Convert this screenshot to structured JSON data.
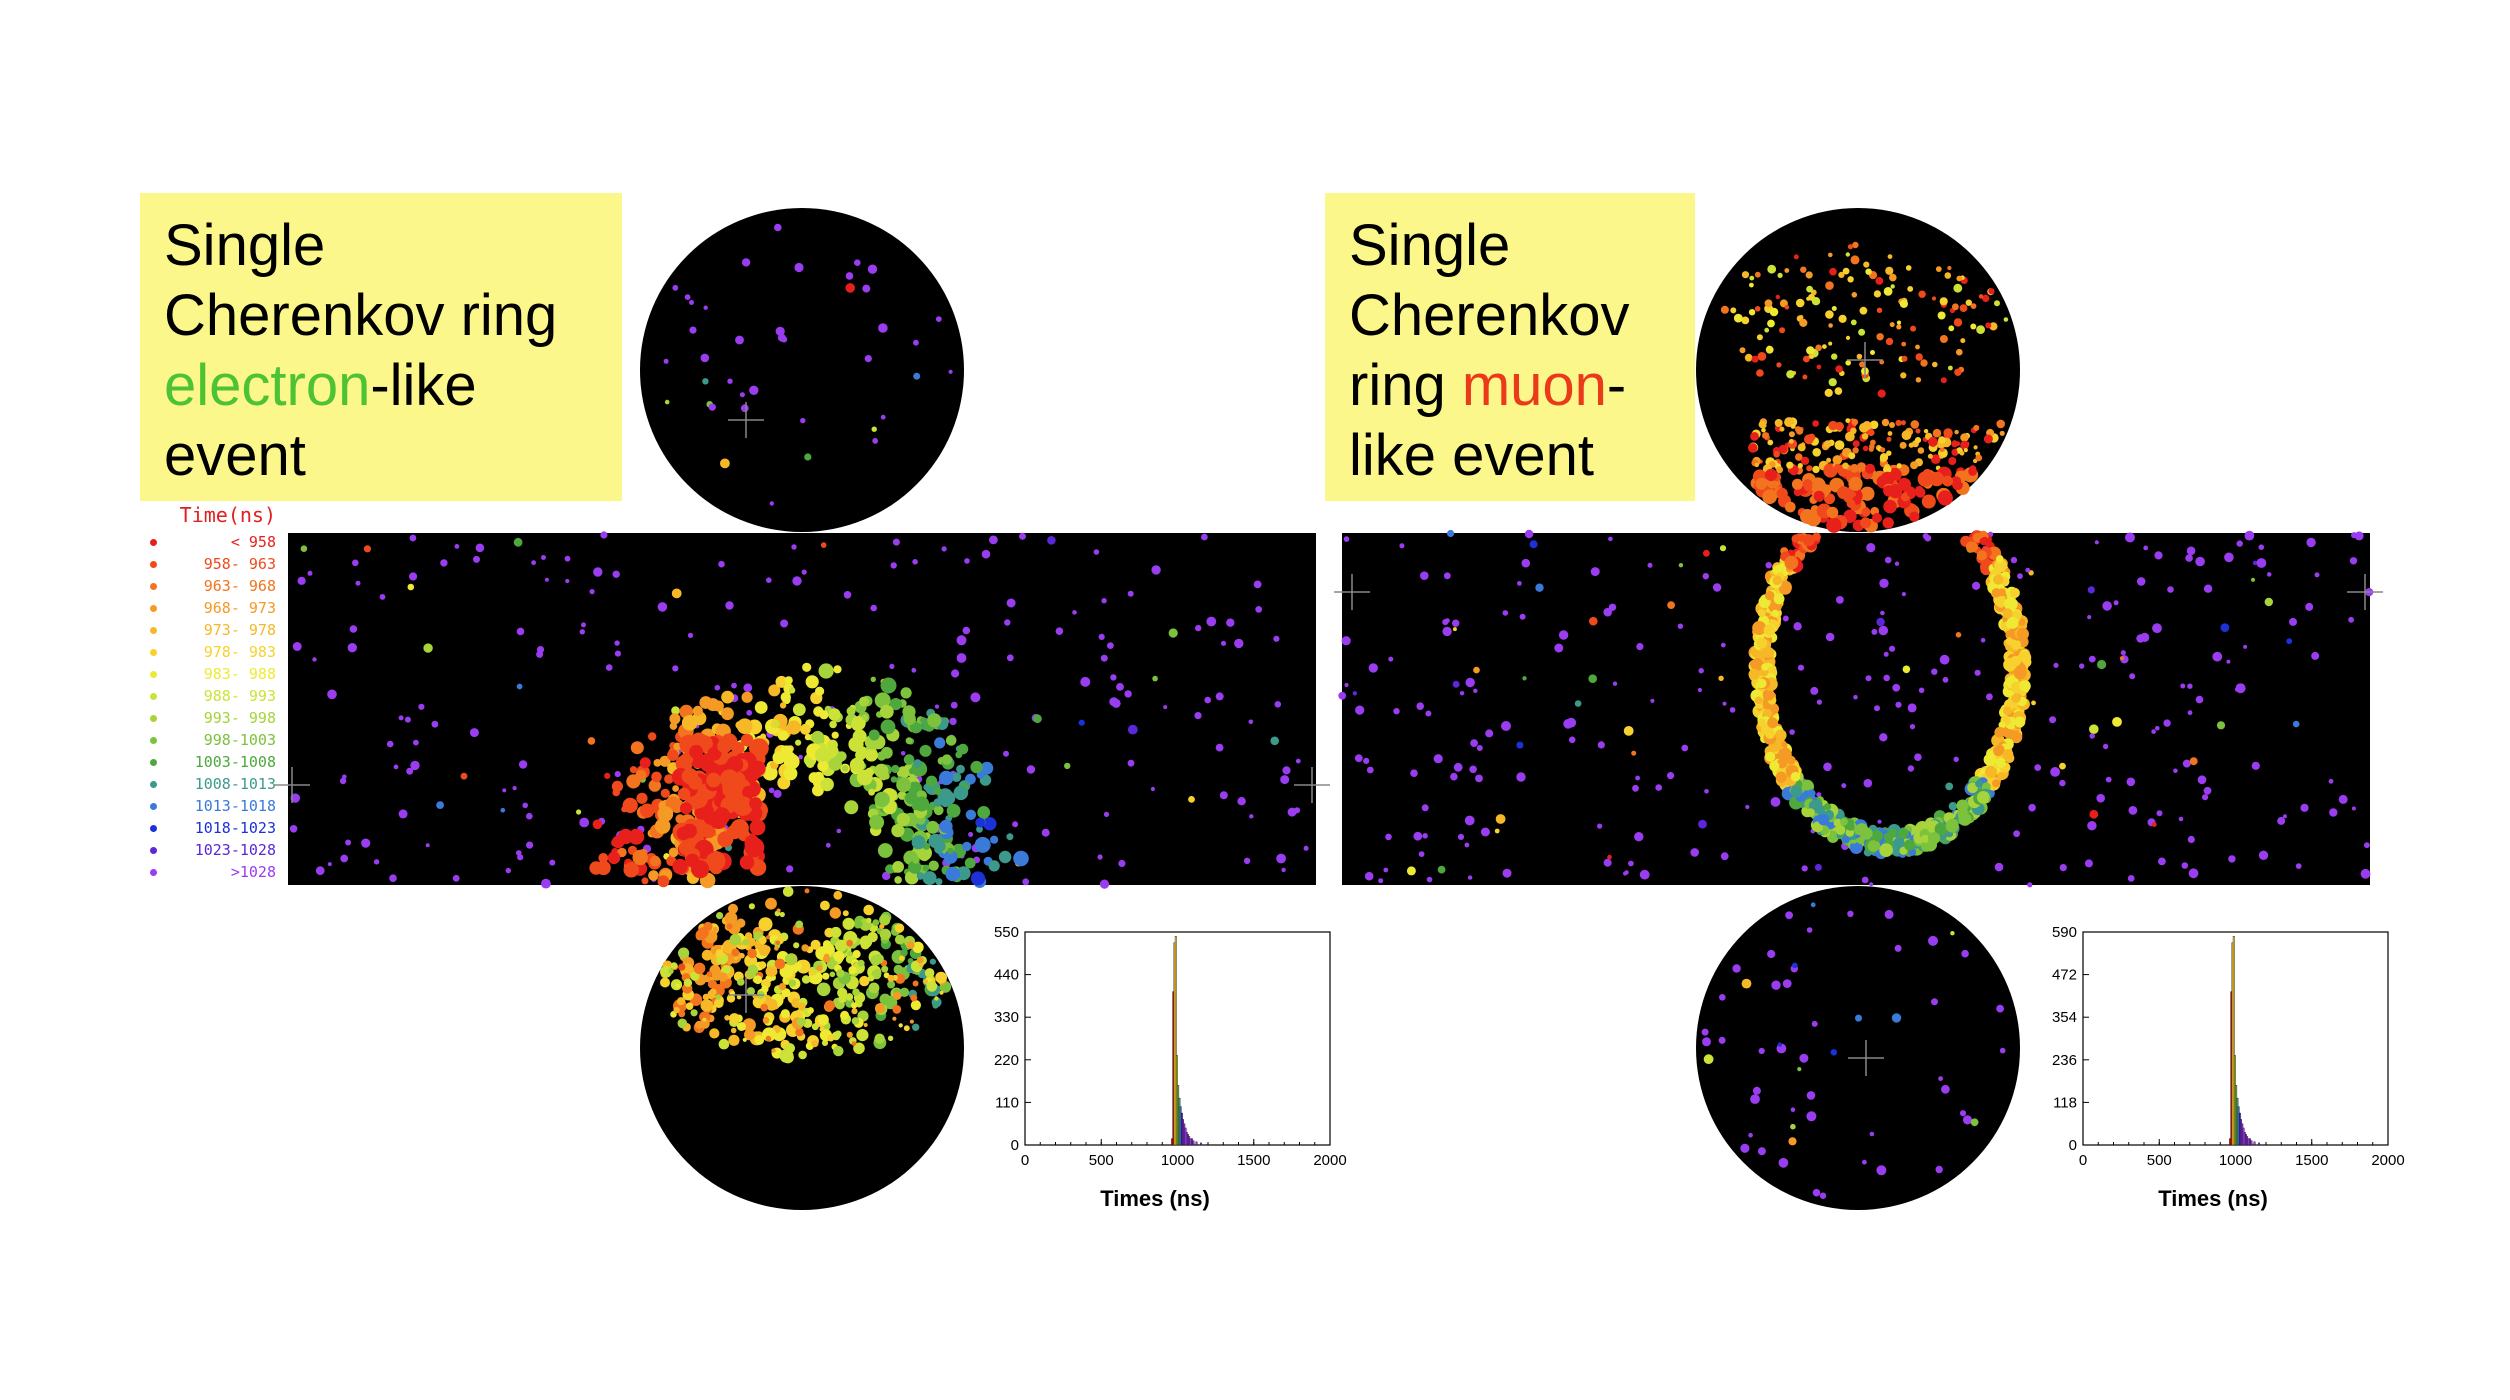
{
  "left": {
    "label_lines": [
      "Single",
      "Cherenkov ring"
    ],
    "label_line3_colored": "electron",
    "label_line3_rest": "-like",
    "label_line4": "event",
    "accent": "#4cc234",
    "histogram": {
      "yticks": [
        "550",
        "440",
        "330",
        "220",
        "110",
        "0"
      ],
      "xticks": [
        "0",
        "500",
        "1000",
        "1500",
        "2000"
      ],
      "xlabel": "Times (ns)"
    }
  },
  "right": {
    "label_line1": "Single",
    "label_line2": "Cherenkov",
    "label_line3_prefix": "ring ",
    "label_line3_colored": "muon",
    "label_line3_rest": "-",
    "label_line4": "like event",
    "accent": "#ea3a1a",
    "histogram": {
      "yticks": [
        "590",
        "472",
        "354",
        "236",
        "118",
        "0"
      ],
      "xticks": [
        "0",
        "500",
        "1000",
        "1500",
        "2000"
      ],
      "xlabel": "Times (ns)"
    }
  },
  "legend": {
    "title": "Time(ns)",
    "rows": [
      {
        "label": "< 958",
        "color": "#e8201c"
      },
      {
        "label": "958- 963",
        "color": "#f04a1c"
      },
      {
        "label": "963- 968",
        "color": "#f3741e"
      },
      {
        "label": "968- 973",
        "color": "#f59a24"
      },
      {
        "label": "973- 978",
        "color": "#f7b828"
      },
      {
        "label": "978- 983",
        "color": "#f7d22e"
      },
      {
        "label": "983- 988",
        "color": "#eeea34"
      },
      {
        "label": "988- 993",
        "color": "#cde236"
      },
      {
        "label": "993- 998",
        "color": "#a6d43a"
      },
      {
        "label": "998-1003",
        "color": "#7cc23c"
      },
      {
        "label": "1003-1008",
        "color": "#4ea83e"
      },
      {
        "label": "1008-1013",
        "color": "#3c9a8c"
      },
      {
        "label": "1013-1018",
        "color": "#3a7ad8"
      },
      {
        "label": "1018-1023",
        "color": "#1c32d8"
      },
      {
        "label": "1023-1028",
        "color": "#5a28d8"
      },
      {
        "label": ">1028",
        "color": "#9a3cf0"
      }
    ]
  }
}
